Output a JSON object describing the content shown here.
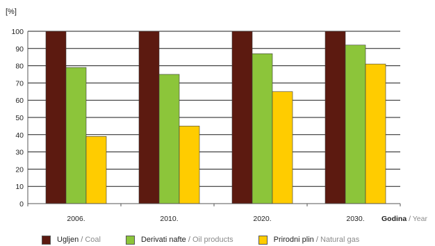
{
  "chart_data": {
    "type": "bar",
    "unit_label": "[%]",
    "categories": [
      "2006.",
      "2010.",
      "2020.",
      "2030."
    ],
    "xlabel": {
      "main": "Godina",
      "sep": " / ",
      "en": "Year"
    },
    "ylim": [
      0,
      100
    ],
    "yticks": [
      0,
      10,
      20,
      30,
      40,
      50,
      60,
      70,
      80,
      90,
      100
    ],
    "grid": true,
    "legend_position": "bottom",
    "series": [
      {
        "name": "Ugljen / Coal",
        "name_main": "Ugljen",
        "name_sep": " / ",
        "name_en": "Coal",
        "color": "#5c1a10",
        "values": [
          100,
          100,
          100,
          100
        ]
      },
      {
        "name": "Derivati nafte / Oil products",
        "name_main": "Derivati nafte",
        "name_sep": " / ",
        "name_en": "Oil products",
        "color": "#8cc53a",
        "values": [
          79,
          75,
          87,
          92
        ]
      },
      {
        "name": "Prirodni plin / Natural gas",
        "name_main": "Prirodni plin",
        "name_sep": " / ",
        "name_en": "Natural gas",
        "color": "#ffcc00",
        "values": [
          39,
          45,
          65,
          81
        ]
      }
    ]
  }
}
